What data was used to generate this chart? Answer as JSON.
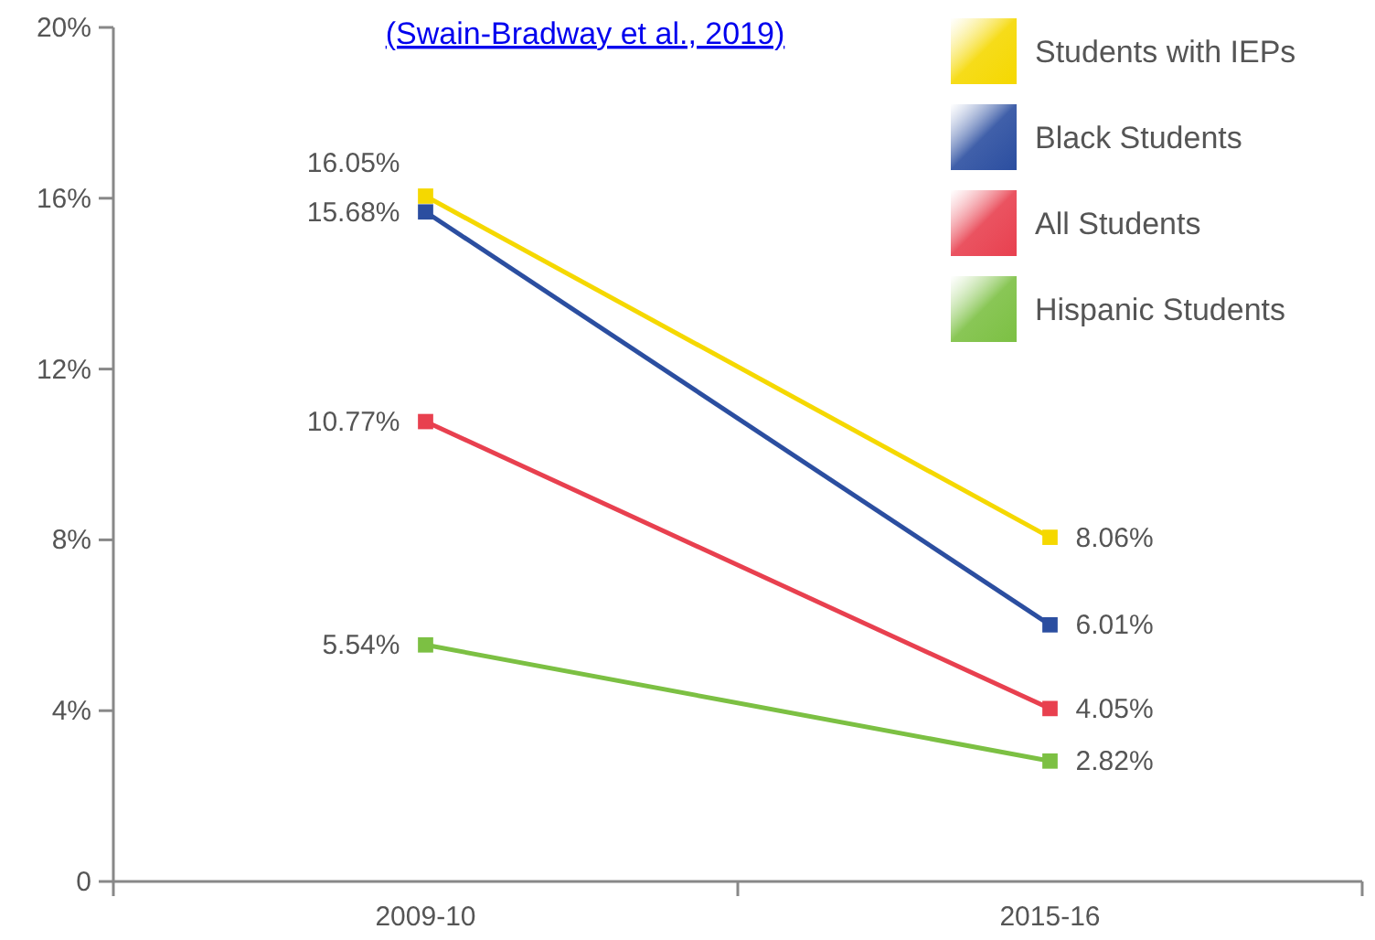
{
  "chart_data": {
    "type": "line",
    "categories": [
      "2009-10",
      "2015-16"
    ],
    "series": [
      {
        "name": "Students with IEPs",
        "color": "#f5d800",
        "values": [
          16.05,
          8.06
        ],
        "value_labels": [
          "16.05%",
          "8.06%"
        ]
      },
      {
        "name": "Black Students",
        "color": "#2b4ea0",
        "values": [
          15.68,
          6.01
        ],
        "value_labels": [
          "15.68%",
          "6.01%"
        ]
      },
      {
        "name": "All Students",
        "color": "#e8404f",
        "values": [
          10.77,
          4.05
        ],
        "value_labels": [
          "10.77%",
          "4.05%"
        ]
      },
      {
        "name": "Hispanic Students",
        "color": "#7cc043",
        "values": [
          5.54,
          2.82
        ],
        "value_labels": [
          "5.54%",
          "2.82%"
        ]
      }
    ],
    "ylim": [
      0,
      20
    ],
    "yticks": [
      0,
      {
        "value": 4,
        "label": "4%"
      },
      {
        "value": 8,
        "label": "8%"
      },
      {
        "value": 12,
        "label": "12%"
      },
      {
        "value": 16,
        "label": "16%"
      },
      {
        "value": 20,
        "label": "20%"
      }
    ],
    "annotations": [
      "(Swain-Bradway et al., 2019)"
    ],
    "legend": "top right",
    "marker": "square",
    "grid": false
  }
}
